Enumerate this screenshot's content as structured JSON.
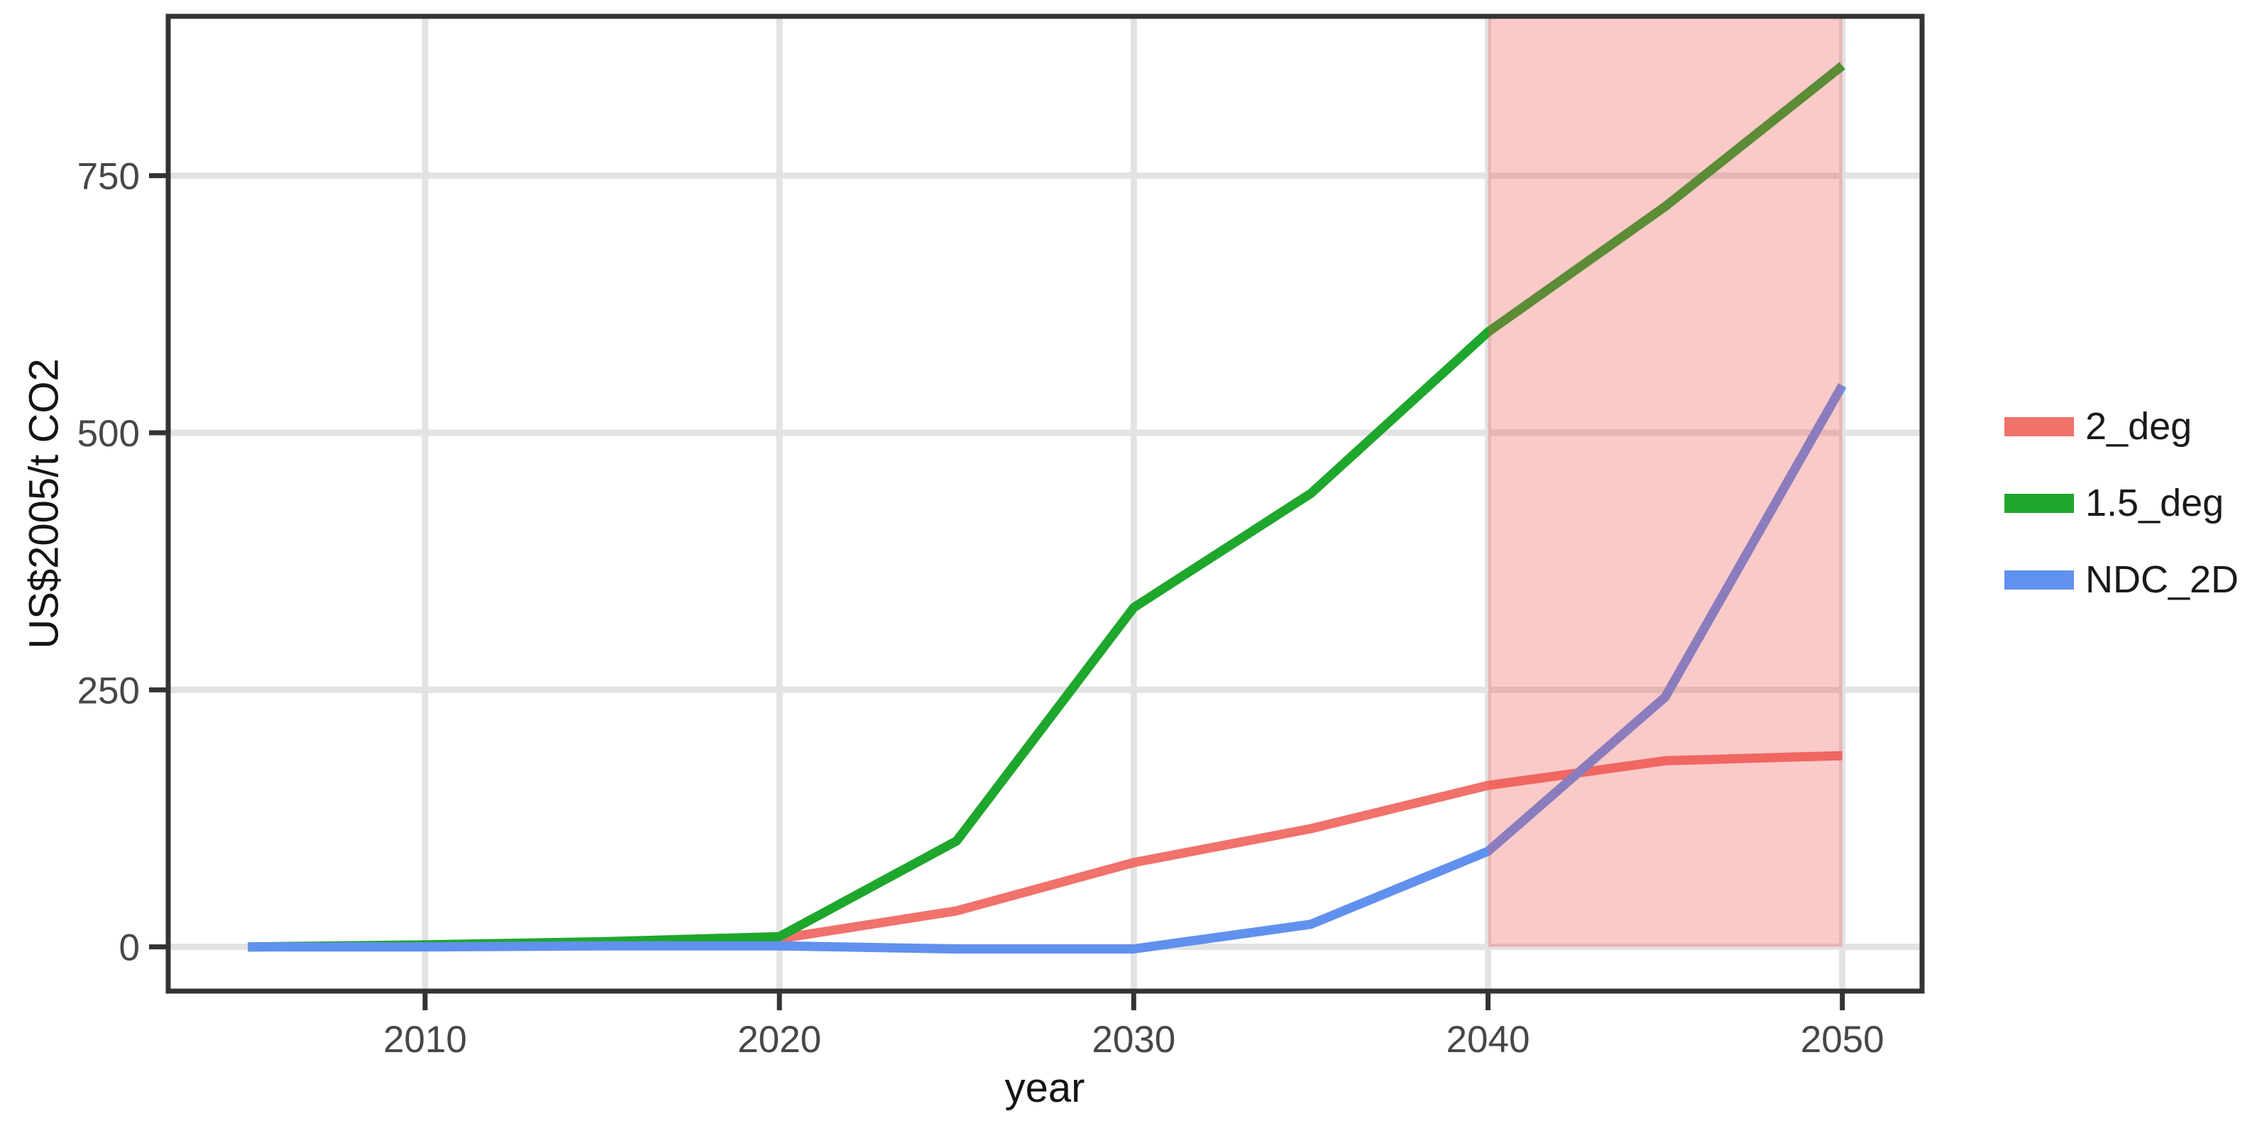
{
  "chart_data": {
    "type": "line",
    "title": "",
    "xlabel": "year",
    "ylabel": "US$2005/t CO2",
    "x": [
      2005,
      2010,
      2015,
      2020,
      2025,
      2030,
      2035,
      2040,
      2045,
      2050
    ],
    "series": [
      {
        "name": "2_deg",
        "color": "#F1716B",
        "values": [
          0,
          1,
          4,
          8,
          35,
          82,
          115,
          157,
          181,
          186
        ]
      },
      {
        "name": "1.5_deg",
        "color": "#1EA72C",
        "values": [
          0,
          2,
          5,
          10,
          103,
          330,
          441,
          598,
          720,
          857
        ]
      },
      {
        "name": "NDC_2D",
        "color": "#6191EE",
        "values": [
          0,
          0,
          1,
          1,
          -2,
          -2,
          22,
          93,
          243,
          546
        ]
      }
    ],
    "x_ticks": [
      2010,
      2020,
      2030,
      2040,
      2050
    ],
    "y_ticks": [
      0,
      250,
      500,
      750
    ],
    "x_domain": [
      2002.75,
      2052.25
    ],
    "y_domain": [
      -43,
      905
    ],
    "grid": true,
    "legend_position": "right",
    "highlight_band": {
      "x_start": 2040,
      "x_end": 2050,
      "y_start": 0,
      "y_end": "panel-top",
      "fill": "rgba(238,80,75,0.30)"
    }
  },
  "style": {
    "panel_border_color": "#333333",
    "gridline_color": "#E3E3E3",
    "tick_color": "#333333",
    "tick_label_color": "#474747",
    "background": "#ffffff"
  }
}
